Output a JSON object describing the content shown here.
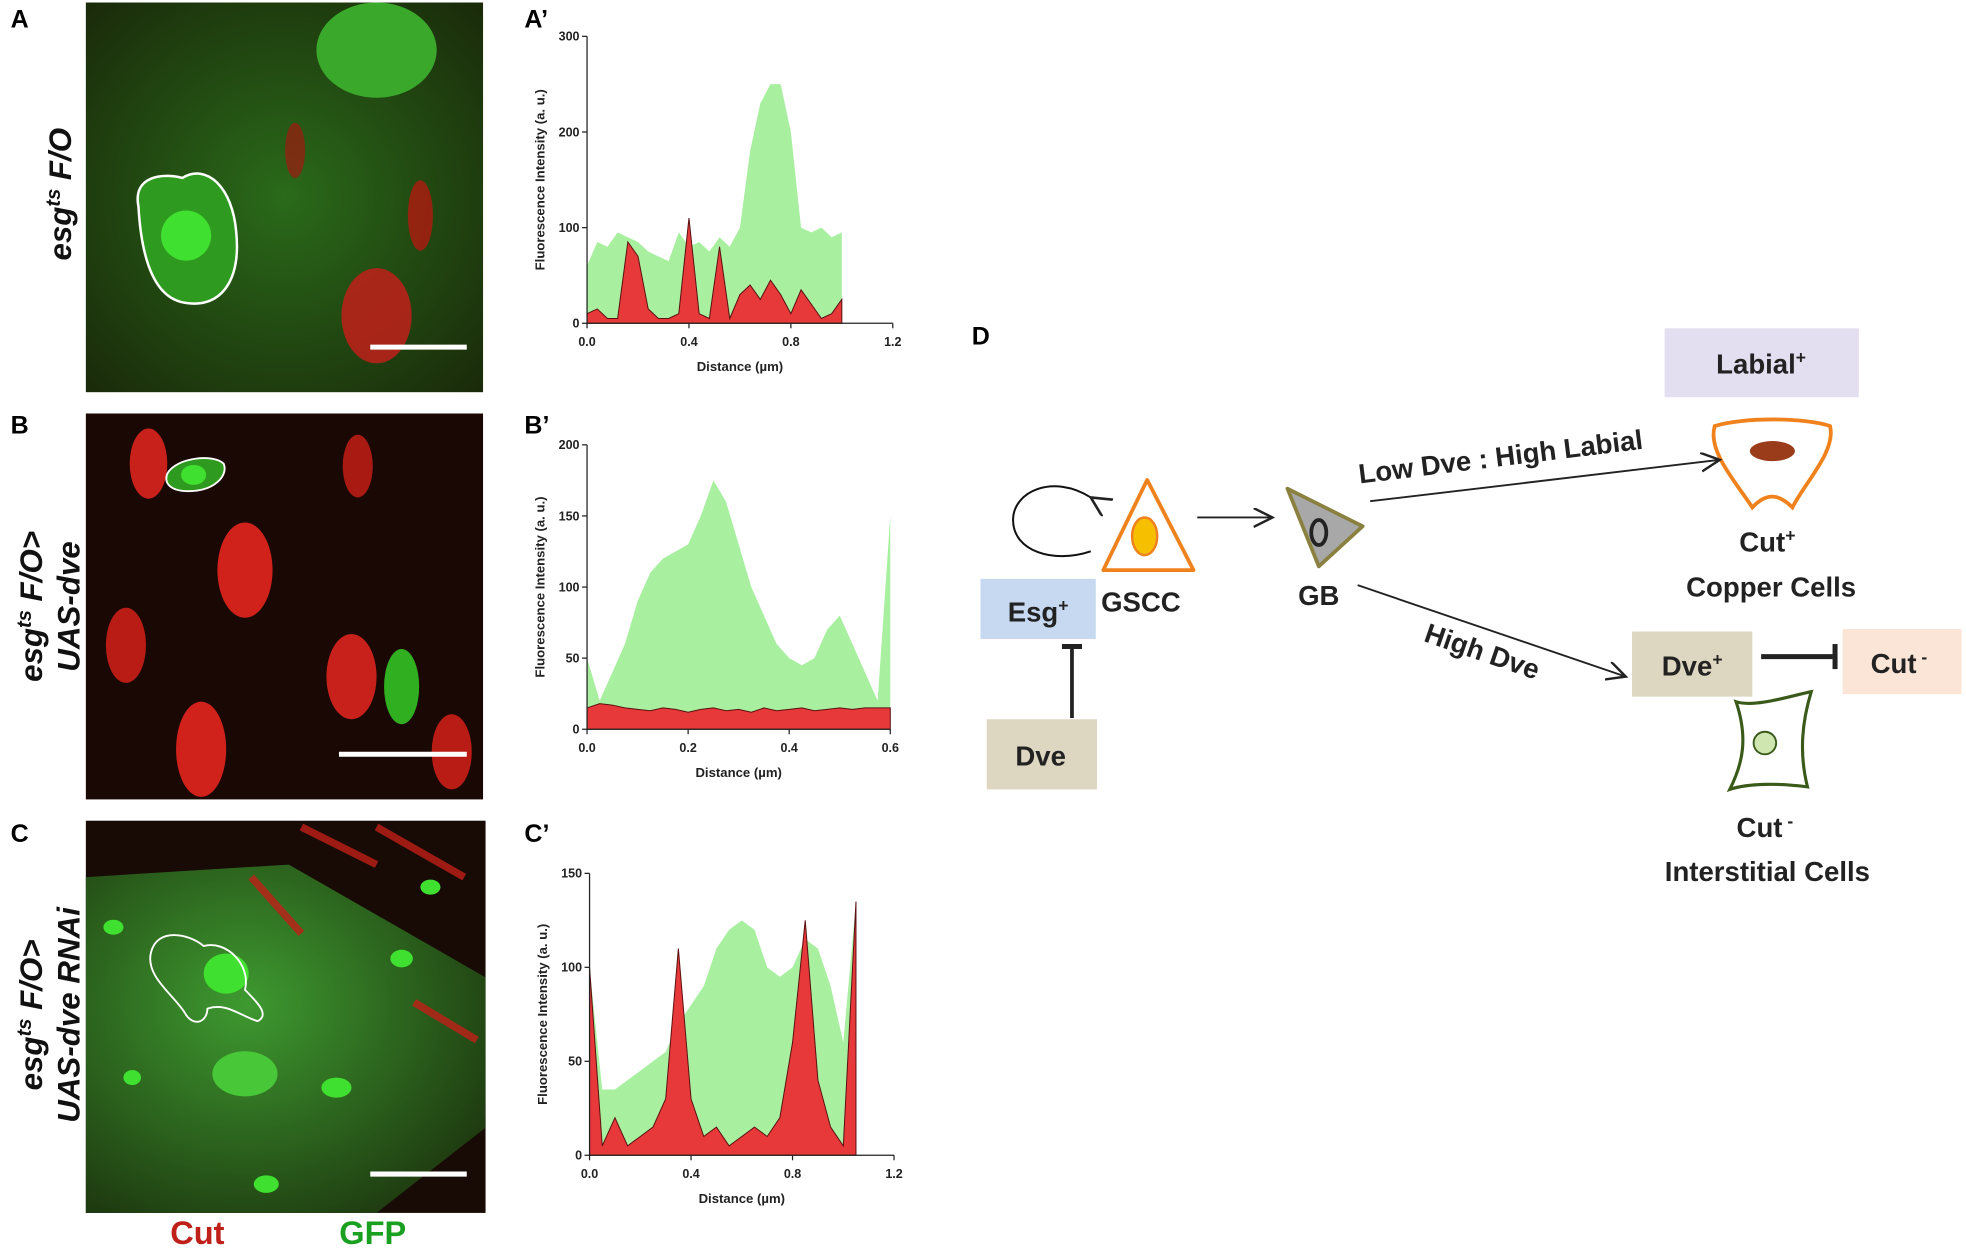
{
  "panels": {
    "A": "A",
    "A2": "A’",
    "B": "B",
    "B2": "B’",
    "C": "C",
    "C2": "C’",
    "D": "D"
  },
  "genotypes": [
    [
      [
        "esg",
        "ts",
        " F/O"
      ]
    ],
    [
      [
        "esg",
        "ts",
        " F/O>"
      ],
      [
        "UAS-dve",
        "",
        ""
      ]
    ],
    [
      [
        "esg",
        "ts",
        " F/O>"
      ],
      [
        "UAS-dve RNAi",
        "",
        ""
      ]
    ]
  ],
  "channels": {
    "red": "Cut",
    "green": "GFP"
  },
  "chart_data": [
    {
      "type": "area",
      "xlabel": "Distance (µm)",
      "ylabel": "Fluorescence Intensity (a. u.)",
      "x": [
        0,
        0.04,
        0.08,
        0.12,
        0.16,
        0.2,
        0.24,
        0.28,
        0.32,
        0.36,
        0.4,
        0.44,
        0.48,
        0.52,
        0.56,
        0.6,
        0.64,
        0.68,
        0.72,
        0.76,
        0.8,
        0.84,
        0.88,
        0.92,
        0.96,
        1.0
      ],
      "series": [
        {
          "name": "GFP",
          "color": "#a8f0a0",
          "values": [
            60,
            85,
            80,
            95,
            90,
            85,
            75,
            70,
            65,
            95,
            80,
            85,
            75,
            90,
            80,
            100,
            180,
            230,
            250,
            250,
            200,
            100,
            95,
            100,
            90,
            95
          ]
        },
        {
          "name": "Cut",
          "color": "#e8393a",
          "values": [
            10,
            15,
            5,
            5,
            85,
            70,
            15,
            5,
            5,
            10,
            110,
            10,
            5,
            80,
            5,
            30,
            40,
            25,
            45,
            30,
            10,
            35,
            20,
            5,
            10,
            25
          ]
        }
      ],
      "xlim": [
        0,
        1.2
      ],
      "xticks": [
        {
          "value": 0,
          "label": "0.0"
        },
        0.4,
        0.8,
        1.2
      ],
      "ylim": [
        0,
        300
      ],
      "yticks": [
        0,
        100,
        200,
        300
      ]
    },
    {
      "type": "area",
      "xlabel": "Distance (µm)",
      "ylabel": "Fluorescence Intensity (a. u.)",
      "x": [
        0,
        0.025,
        0.05,
        0.075,
        0.1,
        0.125,
        0.15,
        0.175,
        0.2,
        0.225,
        0.25,
        0.275,
        0.3,
        0.325,
        0.35,
        0.375,
        0.4,
        0.425,
        0.45,
        0.475,
        0.5,
        0.525,
        0.55,
        0.575,
        0.6
      ],
      "series": [
        {
          "name": "GFP",
          "color": "#a8f0a0",
          "values": [
            50,
            20,
            40,
            60,
            90,
            110,
            120,
            125,
            130,
            150,
            175,
            160,
            130,
            100,
            80,
            60,
            50,
            45,
            50,
            70,
            80,
            60,
            40,
            20,
            150
          ]
        },
        {
          "name": "Cut",
          "color": "#e8393a",
          "values": [
            15,
            18,
            17,
            15,
            14,
            13,
            15,
            14,
            12,
            14,
            15,
            13,
            14,
            12,
            15,
            13,
            14,
            15,
            13,
            14,
            15,
            14,
            15,
            15,
            15
          ]
        }
      ],
      "xlim": [
        0,
        0.6
      ],
      "xticks": [
        {
          "value": 0,
          "label": "0.0"
        },
        0.2,
        0.4,
        0.6
      ],
      "ylim": [
        0,
        200
      ],
      "yticks": [
        0,
        50,
        100,
        150,
        200
      ]
    },
    {
      "type": "area",
      "xlabel": "Distance (µm)",
      "ylabel": "Fluorescence Intensity (a. u.)",
      "x": [
        0,
        0.05,
        0.1,
        0.15,
        0.2,
        0.25,
        0.3,
        0.35,
        0.4,
        0.45,
        0.5,
        0.55,
        0.6,
        0.65,
        0.7,
        0.75,
        0.8,
        0.85,
        0.9,
        0.95,
        1.0,
        1.05
      ],
      "series": [
        {
          "name": "GFP",
          "color": "#a8f0a0",
          "values": [
            100,
            35,
            35,
            40,
            45,
            50,
            55,
            70,
            80,
            90,
            110,
            120,
            125,
            120,
            100,
            95,
            100,
            115,
            110,
            90,
            60,
            135
          ]
        },
        {
          "name": "Cut",
          "color": "#e8393a",
          "values": [
            100,
            5,
            20,
            5,
            10,
            15,
            30,
            110,
            30,
            10,
            15,
            5,
            10,
            15,
            10,
            20,
            60,
            125,
            40,
            15,
            5,
            135
          ]
        }
      ],
      "xlim": [
        0,
        1.2
      ],
      "xticks": [
        {
          "value": 0,
          "label": "0.0"
        },
        0.4,
        0.8,
        1.2
      ],
      "ylim": [
        0,
        150
      ],
      "yticks": [
        0,
        50,
        100,
        150
      ]
    }
  ],
  "diagram": {
    "labial": {
      "text": "Labial",
      "sup": "+"
    },
    "copper_cut": {
      "text": "Cut",
      "sup": "+"
    },
    "copper": "Copper Cells",
    "gscc": "GSCC",
    "gb": "GB",
    "esg": {
      "text": "Esg",
      "sup": "+"
    },
    "dve": "Dve",
    "low_arrow": "Low Dve : High Labial",
    "high_arrow": "High Dve",
    "dve_plus": {
      "text": "Dve",
      "sup": "+"
    },
    "cut_minus_box": {
      "text": "Cut",
      "sup": " -"
    },
    "inter_cut": {
      "text": "Cut",
      "sup": " -"
    },
    "interstitial": "Interstitial Cells"
  }
}
